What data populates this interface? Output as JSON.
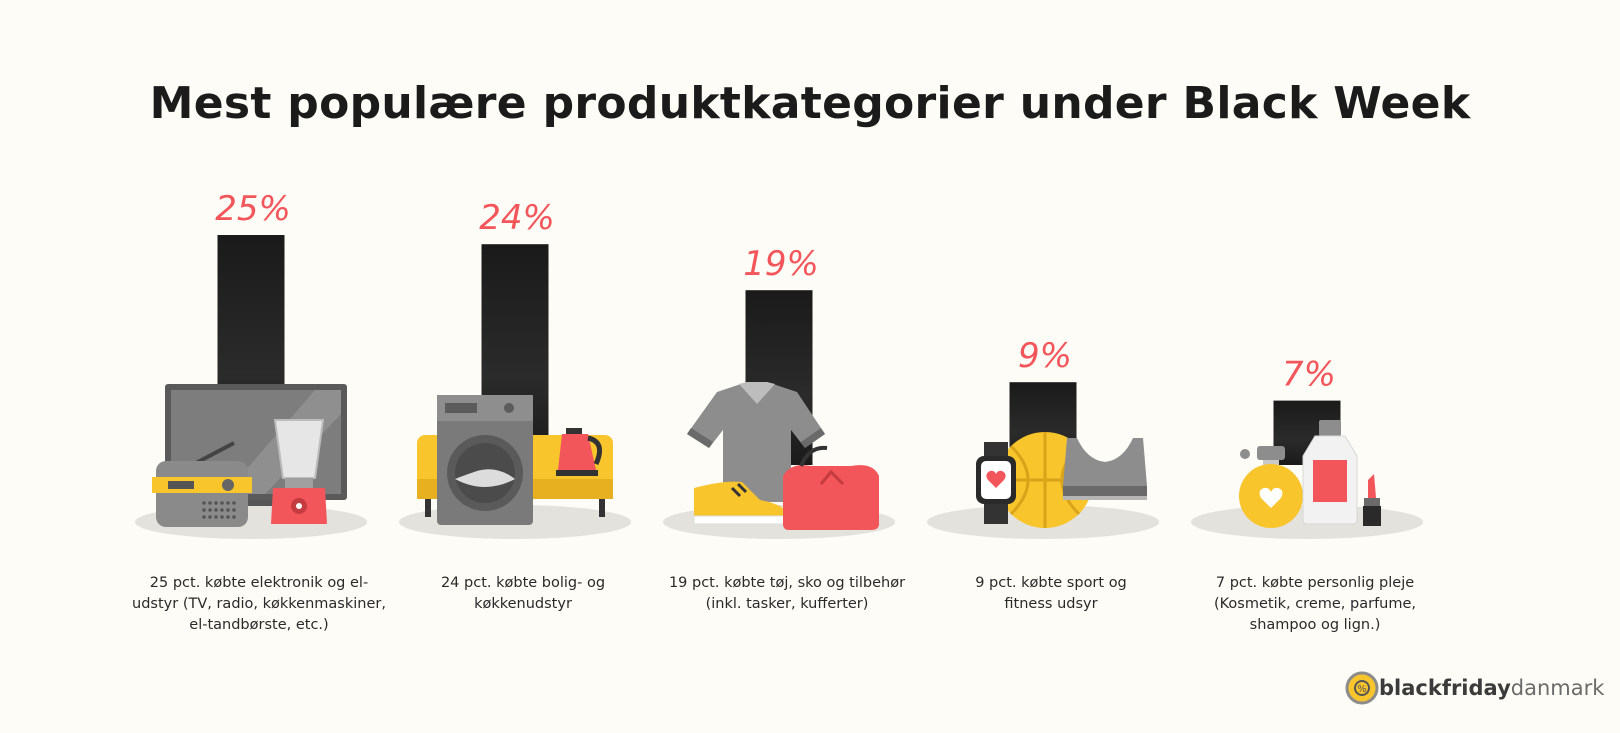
{
  "title": "Mest populære produktkategorier under Black Week",
  "chart_data": {
    "type": "bar",
    "categories": [
      "25 pct. købte elektronik og el-udstyr (TV, radio, køkkenmaskiner, el-tandbørste, etc.)",
      "24 pct. købte bolig- og køkkenudstyr",
      "19 pct. købte tøj, sko og tilbehør (inkl. tasker, kufferter)",
      "9 pct. købte sport og fitness udsyr",
      "7 pct. købte personlig pleje (Kosmetik, creme, parfume, shampoo og lign.)"
    ],
    "values": [
      25,
      24,
      19,
      9,
      7
    ],
    "value_labels": [
      "25%",
      "24%",
      "19%",
      "9%",
      "7%"
    ],
    "captions": [
      [
        "25 pct. købte elektronik og el-",
        "udstyr (TV, radio, køkkenmaskiner,",
        "el-tandbørste, etc.)"
      ],
      [
        "24 pct. købte bolig- og",
        "køkkenudstyr"
      ],
      [
        "19 pct. købte tøj, sko og tilbehør",
        "(inkl. tasker, kufferter)"
      ],
      [
        "9 pct. købte sport og",
        "fitness udsyr"
      ],
      [
        "7 pct. købte personlig pleje",
        "(Kosmetik, creme, parfume,",
        "shampoo og lign.)"
      ]
    ],
    "icons": [
      [
        "tv-icon",
        "radio-icon",
        "blender-icon"
      ],
      [
        "sofa-icon",
        "washing-machine-icon",
        "kettle-icon"
      ],
      [
        "shirt-icon",
        "sneaker-icon",
        "bag-icon"
      ],
      [
        "smartwatch-icon",
        "basketball-icon",
        "sports-bra-icon"
      ],
      [
        "perfume-icon",
        "lotion-bottle-icon",
        "lipstick-icon"
      ]
    ],
    "colors": {
      "bar": "#1c1c1c",
      "label": "#f2555a",
      "accent_yellow": "#f9c52c",
      "accent_red": "#f2555a",
      "gray": "#8c8c8c"
    }
  },
  "logo": {
    "text_bold": "blackfriday",
    "text_light": "danmark"
  }
}
